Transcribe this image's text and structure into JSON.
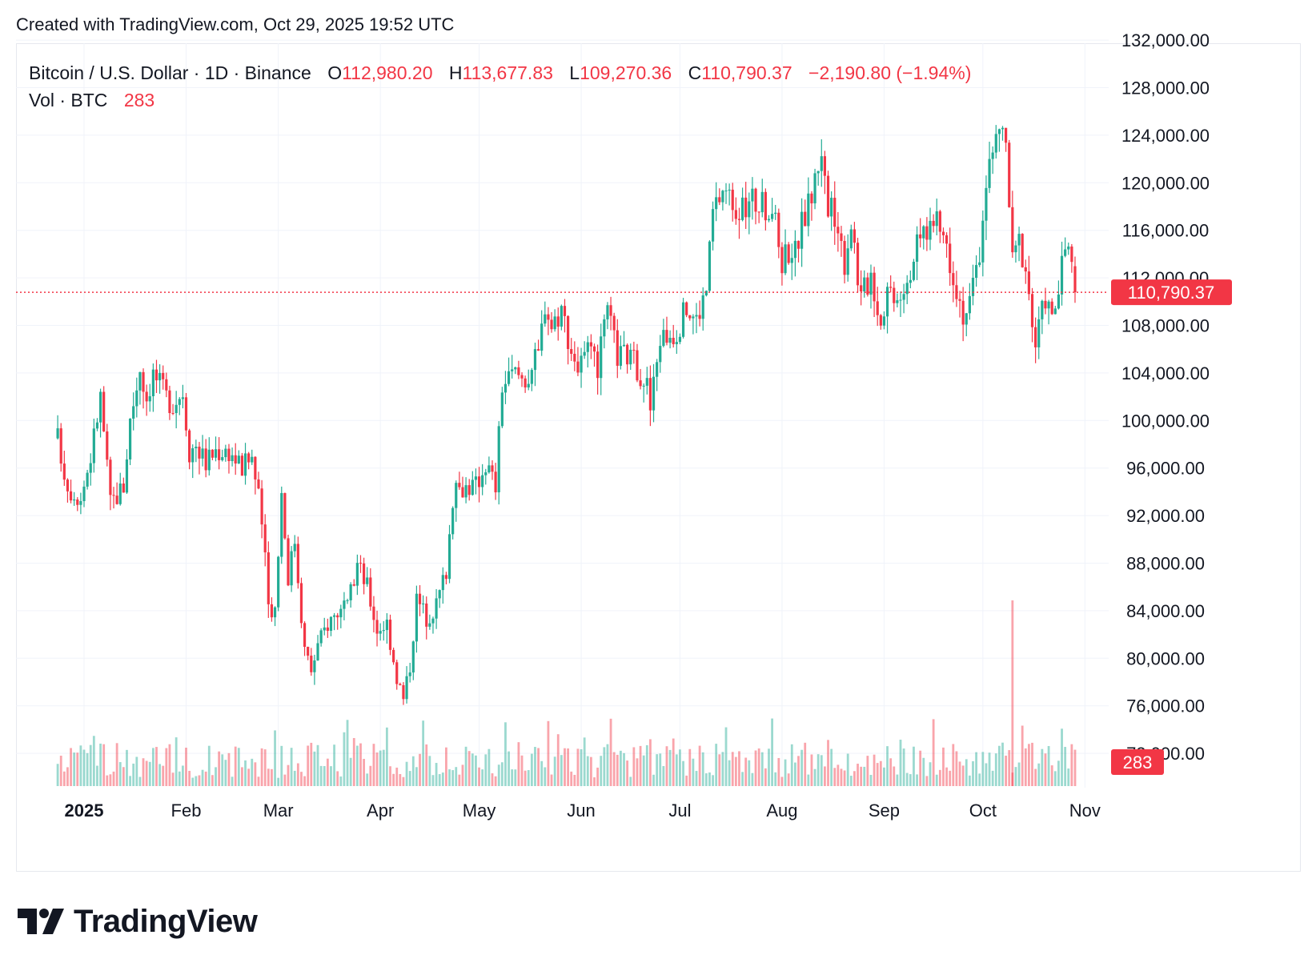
{
  "header": {
    "created_text": "Created with TradingView.com, Oct 29, 2025 19:52 UTC"
  },
  "legend": {
    "symbol": "Bitcoin / U.S. Dollar · 1D · Binance",
    "open_label": "O",
    "open": "112,980.20",
    "high_label": "H",
    "high": "113,677.83",
    "low_label": "L",
    "low": "109,270.36",
    "close_label": "C",
    "close": "110,790.37",
    "change": "−2,190.80 (−1.94%)",
    "vol_label": "Vol · BTC",
    "vol_value": "283"
  },
  "brand": {
    "name": "TradingView"
  },
  "colors": {
    "up": "#22ab94",
    "down": "#f23645",
    "grid": "#f0f3fa",
    "text": "#131722"
  },
  "chart_data": {
    "type": "candlestick",
    "symbol": "BTCUSD",
    "interval": "1D",
    "x_ticks": [
      "2025",
      "Feb",
      "Mar",
      "Apr",
      "May",
      "Jun",
      "Jul",
      "Aug",
      "Sep",
      "Oct",
      "Nov"
    ],
    "y_ticks": [
      "132,000.00",
      "128,000.00",
      "124,000.00",
      "120,000.00",
      "116,000.00",
      "112,000.00",
      "108,000.00",
      "104,000.00",
      "100,000.00",
      "96,000.00",
      "92,000.00",
      "88,000.00",
      "84,000.00",
      "80,000.00",
      "76,000.00",
      "72,000.00"
    ],
    "ylim": [
      72000,
      132000
    ],
    "grid": true,
    "last_price": 110790.37,
    "last_price_label": "110,790.37",
    "last_volume_label": "283",
    "close_path": [
      [
        "2024-12-24",
        98500
      ],
      [
        "2024-12-27",
        94500
      ],
      [
        "2024-12-31",
        93500
      ],
      [
        "2025-01-03",
        97000
      ],
      [
        "2025-01-06",
        102000
      ],
      [
        "2025-01-09",
        93000
      ],
      [
        "2025-01-13",
        94500
      ],
      [
        "2025-01-15",
        100000
      ],
      [
        "2025-01-18",
        104500
      ],
      [
        "2025-01-20",
        102000
      ],
      [
        "2025-01-22",
        104000
      ],
      [
        "2025-01-26",
        102000
      ],
      [
        "2025-01-28",
        101500
      ],
      [
        "2025-01-31",
        102500
      ],
      [
        "2025-02-02",
        97500
      ],
      [
        "2025-02-04",
        98000
      ],
      [
        "2025-02-07",
        96500
      ],
      [
        "2025-02-10",
        97500
      ],
      [
        "2025-02-14",
        97500
      ],
      [
        "2025-02-18",
        96000
      ],
      [
        "2025-02-21",
        97000
      ],
      [
        "2025-02-24",
        91500
      ],
      [
        "2025-02-26",
        84500
      ],
      [
        "2025-02-28",
        84200
      ],
      [
        "2025-03-02",
        94000
      ],
      [
        "2025-03-04",
        87000
      ],
      [
        "2025-03-06",
        90000
      ],
      [
        "2025-03-09",
        80700
      ],
      [
        "2025-03-11",
        79000
      ],
      [
        "2025-03-13",
        81000
      ],
      [
        "2025-03-16",
        83000
      ],
      [
        "2025-03-19",
        84000
      ],
      [
        "2025-03-22",
        84000
      ],
      [
        "2025-03-25",
        88000
      ],
      [
        "2025-03-28",
        86000
      ],
      [
        "2025-03-31",
        82500
      ],
      [
        "2025-04-03",
        83000
      ],
      [
        "2025-04-06",
        78500
      ],
      [
        "2025-04-08",
        76500
      ],
      [
        "2025-04-10",
        79500
      ],
      [
        "2025-04-12",
        85000
      ],
      [
        "2025-04-15",
        83500
      ],
      [
        "2025-04-18",
        84500
      ],
      [
        "2025-04-21",
        87500
      ],
      [
        "2025-04-23",
        93500
      ],
      [
        "2025-04-26",
        94500
      ],
      [
        "2025-04-30",
        94500
      ],
      [
        "2025-05-03",
        96500
      ],
      [
        "2025-05-06",
        94500
      ],
      [
        "2025-05-08",
        103000
      ],
      [
        "2025-05-12",
        104000
      ],
      [
        "2025-05-15",
        103500
      ],
      [
        "2025-05-19",
        105500
      ],
      [
        "2025-05-21",
        110000
      ],
      [
        "2025-05-23",
        108000
      ],
      [
        "2025-05-26",
        109500
      ],
      [
        "2025-05-29",
        106000
      ],
      [
        "2025-05-31",
        104500
      ],
      [
        "2025-06-03",
        105500
      ],
      [
        "2025-06-06",
        104500
      ],
      [
        "2025-06-09",
        109000
      ],
      [
        "2025-06-12",
        105500
      ],
      [
        "2025-06-15",
        105500
      ],
      [
        "2025-06-18",
        104500
      ],
      [
        "2025-06-21",
        103000
      ],
      [
        "2025-06-22",
        101000
      ],
      [
        "2025-06-25",
        107000
      ],
      [
        "2025-06-30",
        107500
      ],
      [
        "2025-07-03",
        109500
      ],
      [
        "2025-07-06",
        108500
      ],
      [
        "2025-07-09",
        111000
      ],
      [
        "2025-07-11",
        117500
      ],
      [
        "2025-07-14",
        119500
      ],
      [
        "2025-07-17",
        118500
      ],
      [
        "2025-07-20",
        117500
      ],
      [
        "2025-07-23",
        118500
      ],
      [
        "2025-07-26",
        118000
      ],
      [
        "2025-07-29",
        117800
      ],
      [
        "2025-08-01",
        113500
      ],
      [
        "2025-08-03",
        114500
      ],
      [
        "2025-08-05",
        114200
      ],
      [
        "2025-08-07",
        116500
      ],
      [
        "2025-08-10",
        119000
      ],
      [
        "2025-08-13",
        123000
      ],
      [
        "2025-08-15",
        117500
      ],
      [
        "2025-08-17",
        117500
      ],
      [
        "2025-08-20",
        113500
      ],
      [
        "2025-08-22",
        116900
      ],
      [
        "2025-08-25",
        110200
      ],
      [
        "2025-08-28",
        112500
      ],
      [
        "2025-08-31",
        108300
      ],
      [
        "2025-09-02",
        111200
      ],
      [
        "2025-09-05",
        110800
      ],
      [
        "2025-09-08",
        112000
      ],
      [
        "2025-09-10",
        113900
      ],
      [
        "2025-09-13",
        115900
      ],
      [
        "2025-09-16",
        116700
      ],
      [
        "2025-09-19",
        115700
      ],
      [
        "2025-09-22",
        112600
      ],
      [
        "2025-09-25",
        109000
      ],
      [
        "2025-09-27",
        109700
      ],
      [
        "2025-09-30",
        114000
      ],
      [
        "2025-10-02",
        120500
      ],
      [
        "2025-10-04",
        122300
      ],
      [
        "2025-10-06",
        124700
      ],
      [
        "2025-10-08",
        123200
      ],
      [
        "2025-10-10",
        113200
      ],
      [
        "2025-10-12",
        115100
      ],
      [
        "2025-10-14",
        113000
      ],
      [
        "2025-10-16",
        108200
      ],
      [
        "2025-10-17",
        106400
      ],
      [
        "2025-10-20",
        110500
      ],
      [
        "2025-10-22",
        108400
      ],
      [
        "2025-10-24",
        111000
      ],
      [
        "2025-10-26",
        114500
      ],
      [
        "2025-10-27",
        114100
      ],
      [
        "2025-10-28",
        112980
      ],
      [
        "2025-10-29",
        110790
      ]
    ]
  }
}
